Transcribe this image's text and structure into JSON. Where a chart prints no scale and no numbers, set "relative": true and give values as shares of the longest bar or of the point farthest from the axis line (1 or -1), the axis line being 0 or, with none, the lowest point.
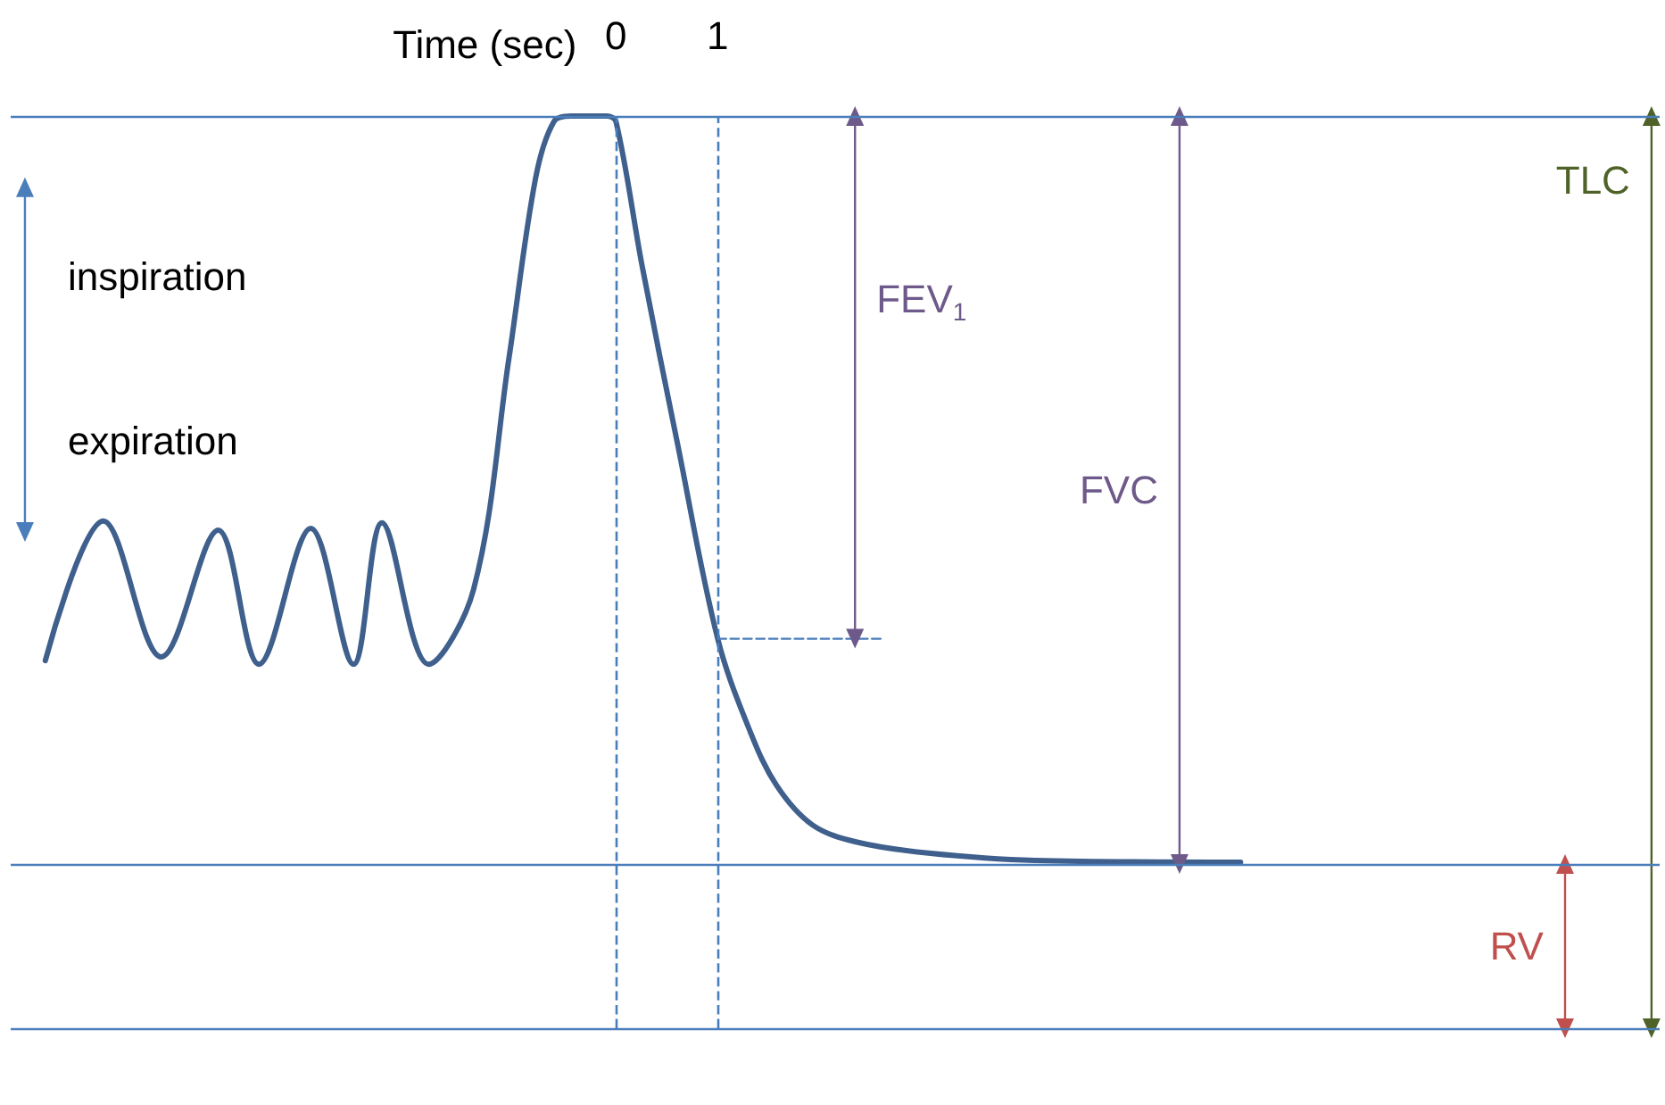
{
  "chart_data": {
    "type": "line",
    "relative": true,
    "xlabel": "Time (sec)",
    "xlim": [
      -5.95,
      10.26
    ],
    "xticks": [
      0,
      1
    ],
    "tick_labels": "x",
    "annotations": [
      "inspiration",
      "expiration"
    ],
    "series": [
      {
        "color": "#3f5f8c",
        "x": [
          -5.61,
          -5.04,
          -4.47,
          -3.91,
          -3.51,
          -3.0,
          -2.58,
          -2.3,
          -1.84,
          -1.4,
          -1.05,
          -0.79,
          -0.61,
          -0.44,
          -0.09,
          0,
          0.26,
          0.61,
          1.0,
          1.32,
          1.58,
          1.93,
          2.37,
          3.07,
          4.12,
          6.14
        ],
        "values": [
          0.403,
          0.556,
          0.407,
          0.546,
          0.399,
          0.548,
          0.399,
          0.554,
          0.399,
          0.481,
          0.736,
          0.932,
          0.994,
          1,
          1,
          0.994,
          0.834,
          0.638,
          0.427,
          0.325,
          0.266,
          0.223,
          0.204,
          0.192,
          0.184,
          0.182
        ]
      },
      {
        "color": "#4a7ebb",
        "x": [
          1,
          2.63
        ],
        "values": [
          0.427,
          0.427
        ],
        "line_style": "dashed"
      },
      {
        "name": "FEV$_{1}$",
        "color": "#6e5a8a",
        "x": [
          2.35,
          2.35
        ],
        "values": [
          1,
          0.427
        ],
        "marker": "triangle"
      },
      {
        "name": "FVC",
        "color": "#6e5a8a",
        "x": [
          5.54,
          5.54
        ],
        "values": [
          1,
          0.18
        ],
        "marker": "triangle"
      },
      {
        "name": "TLC",
        "color": "#4f6228",
        "x": [
          10.18,
          10.18
        ],
        "values": [
          1,
          0
        ],
        "marker": "triangle"
      },
      {
        "name": "RV",
        "color": "#c0504d",
        "x": [
          9.33,
          9.33
        ],
        "values": [
          0.18,
          0
        ],
        "marker": "triangle"
      },
      {
        "color": "#4a7ebb",
        "x": [
          -5.81,
          -5.81
        ],
        "values": [
          0.922,
          0.544
        ],
        "marker": "triangle"
      }
    ],
    "ref_lines": [
      {
        "axis": "y",
        "value": 1,
        "color": "#4a7ebb",
        "line_style": "solid"
      },
      {
        "axis": "y",
        "value": 0.18,
        "color": "#4a7ebb",
        "line_style": "solid"
      },
      {
        "axis": "y",
        "value": 0,
        "color": "#4a7ebb",
        "line_style": "solid"
      },
      {
        "axis": "x",
        "value": 0,
        "color": "#4a7ebb",
        "line_style": "dashed"
      },
      {
        "axis": "x",
        "value": 1,
        "color": "#4a7ebb",
        "line_style": "dashed"
      }
    ]
  }
}
